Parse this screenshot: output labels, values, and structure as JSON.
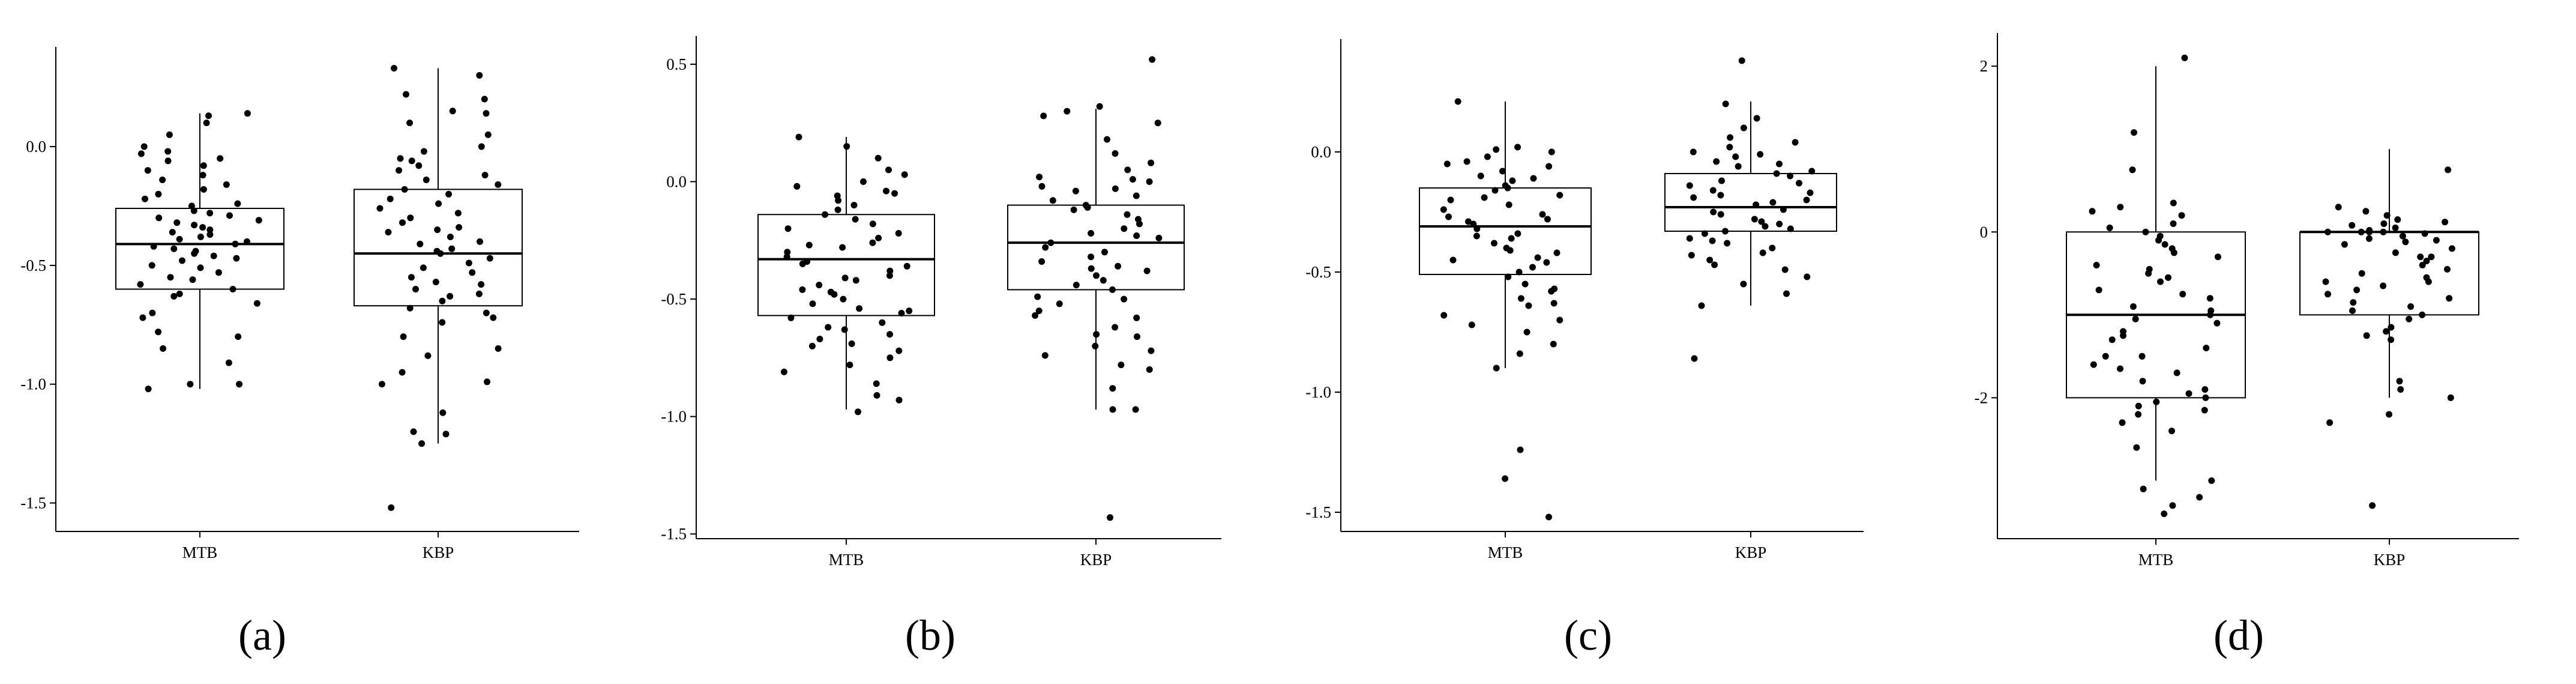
{
  "chart_data": [
    {
      "type": "box",
      "panel_label": "(a)",
      "categories": [
        "MTB",
        "KBP"
      ],
      "yticks": [
        "0.0",
        "-0.5",
        "-1.0",
        "-1.5"
      ],
      "ytick_values": [
        0.0,
        -0.5,
        -1.0,
        -1.5
      ],
      "ylim": [
        -1.62,
        0.42
      ],
      "boxes": [
        {
          "category": "MTB",
          "q1": -0.6,
          "median": -0.41,
          "q3": -0.26,
          "whisker_low": -1.02,
          "whisker_high": 0.14
        },
        {
          "category": "KBP",
          "q1": -0.67,
          "median": -0.45,
          "q3": -0.18,
          "whisker_low": -1.25,
          "whisker_high": 0.33
        }
      ],
      "points": [
        [
          -0.91,
          -1.02,
          -1.0,
          -1.0,
          -0.78,
          -0.8,
          -0.7,
          -0.66,
          -0.63,
          -0.6,
          -0.58,
          -0.55,
          -0.53,
          -0.51,
          -0.5,
          -0.48,
          -0.46,
          -0.45,
          -0.44,
          -0.42,
          -0.41,
          -0.4,
          -0.39,
          -0.38,
          -0.37,
          -0.36,
          -0.35,
          -0.34,
          -0.33,
          -0.32,
          -0.31,
          -0.29,
          -0.28,
          -0.27,
          -0.25,
          -0.24,
          -0.22,
          -0.2,
          -0.18,
          -0.16,
          -0.14,
          -0.12,
          -0.1,
          -0.08,
          -0.06,
          -0.05,
          -0.03,
          -0.02,
          0.0,
          0.05,
          0.1,
          0.13,
          0.14,
          -0.62,
          -0.72,
          -0.85,
          -0.56,
          -0.47,
          -0.43,
          -0.3
        ],
        [
          -1.21,
          -1.25,
          -1.2,
          -1.12,
          -1.52,
          -1.0,
          -0.99,
          -0.95,
          -0.88,
          -0.85,
          -0.8,
          -0.74,
          -0.72,
          -0.7,
          -0.68,
          -0.65,
          -0.62,
          -0.6,
          -0.58,
          -0.55,
          -0.53,
          -0.51,
          -0.49,
          -0.47,
          -0.45,
          -0.43,
          -0.41,
          -0.4,
          -0.38,
          -0.36,
          -0.34,
          -0.32,
          -0.3,
          -0.28,
          -0.26,
          -0.24,
          -0.22,
          -0.2,
          -0.18,
          -0.16,
          -0.14,
          -0.12,
          -0.1,
          -0.08,
          -0.06,
          -0.05,
          -0.02,
          0.0,
          0.05,
          0.1,
          0.14,
          0.15,
          0.2,
          0.22,
          0.3,
          0.33,
          -0.57,
          -0.63,
          -0.44,
          -0.35
        ]
      ]
    },
    {
      "type": "box",
      "panel_label": "(b)",
      "categories": [
        "MTB",
        "KBP"
      ],
      "yticks": [
        "0.5",
        "0.0",
        "-0.5",
        "-1.0",
        "-1.5"
      ],
      "ytick_values": [
        0.5,
        0.0,
        -0.5,
        -1.0,
        -1.5
      ],
      "ylim": [
        -1.52,
        0.62
      ],
      "boxes": [
        {
          "category": "MTB",
          "q1": -0.57,
          "median": -0.33,
          "q3": -0.14,
          "whisker_low": -0.97,
          "whisker_high": 0.19
        },
        {
          "category": "KBP",
          "q1": -0.46,
          "median": -0.26,
          "q3": -0.1,
          "whisker_low": -0.97,
          "whisker_high": 0.31
        }
      ],
      "points": [
        [
          -0.98,
          -0.93,
          -0.91,
          -0.86,
          -0.78,
          -0.75,
          -0.72,
          -0.7,
          -0.67,
          -0.65,
          -0.62,
          -0.6,
          -0.58,
          -0.56,
          -0.54,
          -0.52,
          -0.5,
          -0.48,
          -0.46,
          -0.44,
          -0.42,
          -0.4,
          -0.38,
          -0.36,
          -0.34,
          -0.32,
          -0.3,
          -0.28,
          -0.26,
          -0.24,
          -0.22,
          -0.2,
          -0.18,
          -0.16,
          -0.14,
          -0.12,
          -0.1,
          -0.08,
          -0.06,
          -0.04,
          -0.02,
          0.0,
          0.03,
          0.05,
          0.1,
          0.15,
          0.19,
          -0.63,
          -0.55,
          -0.41,
          -0.35,
          -0.27,
          -0.69,
          -0.81,
          -0.47,
          -0.05
        ],
        [
          -1.43,
          -0.97,
          -0.97,
          -0.88,
          -0.8,
          -0.78,
          -0.74,
          -0.7,
          -0.66,
          -0.62,
          -0.58,
          -0.55,
          -0.52,
          -0.49,
          -0.46,
          -0.44,
          -0.42,
          -0.4,
          -0.38,
          -0.36,
          -0.34,
          -0.32,
          -0.3,
          -0.28,
          -0.26,
          -0.24,
          -0.22,
          -0.2,
          -0.18,
          -0.16,
          -0.14,
          -0.12,
          -0.1,
          -0.08,
          -0.06,
          -0.04,
          -0.02,
          0.0,
          0.02,
          0.05,
          0.08,
          0.12,
          0.18,
          0.25,
          0.28,
          0.3,
          0.32,
          0.52,
          -0.65,
          -0.5,
          -0.37,
          -0.23,
          -0.11,
          -0.03,
          0.01,
          -0.72,
          -0.57
        ]
      ]
    },
    {
      "type": "box",
      "panel_label": "(c)",
      "categories": [
        "MTB",
        "KBP"
      ],
      "yticks": [
        "0.0",
        "-0.5",
        "-1.0",
        "-1.5"
      ],
      "ytick_values": [
        0.0,
        -0.5,
        -1.0,
        -1.5
      ],
      "ylim": [
        -1.58,
        0.47
      ],
      "boxes": [
        {
          "category": "MTB",
          "q1": -0.51,
          "median": -0.31,
          "q3": -0.15,
          "whisker_low": -0.9,
          "whisker_high": 0.21
        },
        {
          "category": "KBP",
          "q1": -0.33,
          "median": -0.23,
          "q3": -0.09,
          "whisker_low": -0.64,
          "whisker_high": 0.21
        }
      ],
      "points": [
        [
          -1.52,
          -1.36,
          -1.24,
          -0.9,
          -0.84,
          -0.8,
          -0.75,
          -0.72,
          -0.68,
          -0.64,
          -0.61,
          -0.58,
          -0.55,
          -0.52,
          -0.5,
          -0.48,
          -0.46,
          -0.44,
          -0.42,
          -0.4,
          -0.38,
          -0.36,
          -0.34,
          -0.32,
          -0.3,
          -0.28,
          -0.26,
          -0.24,
          -0.22,
          -0.2,
          -0.18,
          -0.16,
          -0.14,
          -0.12,
          -0.1,
          -0.08,
          -0.06,
          -0.04,
          -0.02,
          0.0,
          0.02,
          0.21,
          -0.57,
          -0.63,
          -0.45,
          -0.35,
          -0.27,
          -0.19,
          -0.11,
          -0.05,
          0.01,
          -0.7,
          -0.41,
          -0.29,
          -0.15
        ],
        [
          -0.86,
          -0.64,
          -0.59,
          -0.52,
          -0.49,
          -0.47,
          -0.45,
          -0.42,
          -0.4,
          -0.38,
          -0.36,
          -0.34,
          -0.32,
          -0.3,
          -0.28,
          -0.26,
          -0.24,
          -0.22,
          -0.2,
          -0.18,
          -0.16,
          -0.14,
          -0.12,
          -0.1,
          -0.08,
          -0.06,
          -0.04,
          -0.02,
          0.0,
          0.02,
          0.04,
          0.06,
          0.1,
          0.14,
          0.2,
          0.38,
          -0.55,
          -0.43,
          -0.33,
          -0.25,
          -0.17,
          -0.09,
          -0.01,
          -0.37,
          -0.21,
          -0.13,
          -0.29,
          -0.05,
          -0.31,
          -0.19
        ]
      ]
    },
    {
      "type": "box",
      "panel_label": "(d)",
      "categories": [
        "MTB",
        "KBP"
      ],
      "yticks": [
        "2",
        "0",
        "-2"
      ],
      "ytick_values": [
        2,
        0,
        -2
      ],
      "ylim": [
        -3.7,
        2.4
      ],
      "boxes": [
        {
          "category": "MTB",
          "q1": -2.0,
          "median": -1.0,
          "q3": 0.0,
          "whisker_low": -3.0,
          "whisker_high": 2.0
        },
        {
          "category": "KBP",
          "q1": -1.0,
          "median": 0.0,
          "q3": 0.0,
          "whisker_low": -2.0,
          "whisker_high": 1.0
        }
      ],
      "points": [
        [
          -3.4,
          -3.3,
          -3.2,
          -3.1,
          -3.0,
          -2.4,
          -2.3,
          -2.2,
          -2.1,
          -2.0,
          -1.9,
          -1.8,
          -1.7,
          -1.6,
          -1.5,
          -1.4,
          -1.3,
          -1.2,
          -1.1,
          -1.0,
          -0.9,
          -0.8,
          -0.7,
          -0.6,
          -0.5,
          -0.4,
          -0.3,
          -0.2,
          -0.1,
          0.0,
          0.1,
          0.2,
          0.3,
          0.35,
          0.75,
          1.2,
          2.1,
          -2.6,
          -1.95,
          -1.05,
          -0.95,
          -0.15,
          -0.05,
          0.05,
          -2.05,
          -1.5,
          -0.55,
          -1.25,
          -0.75,
          -0.25,
          -2.15,
          -1.65,
          -0.45,
          0.25
        ],
        [
          -3.3,
          -2.3,
          -2.2,
          -2.0,
          -1.9,
          -1.8,
          -1.3,
          -1.2,
          -1.0,
          -0.9,
          -0.8,
          -0.7,
          -0.6,
          -0.5,
          -0.4,
          -0.3,
          -0.2,
          -0.1,
          0.0,
          0.0,
          0.0,
          0.0,
          0.05,
          0.1,
          0.15,
          0.2,
          0.25,
          0.3,
          0.75,
          -0.05,
          -0.15,
          -0.25,
          -0.35,
          -0.45,
          -0.55,
          -0.65,
          -0.75,
          -0.85,
          -0.95,
          -1.05,
          -1.15,
          0.02,
          -0.02,
          0.08,
          -0.08,
          0.12,
          -0.12,
          -1.25,
          -0.6,
          -0.3
        ]
      ]
    }
  ]
}
